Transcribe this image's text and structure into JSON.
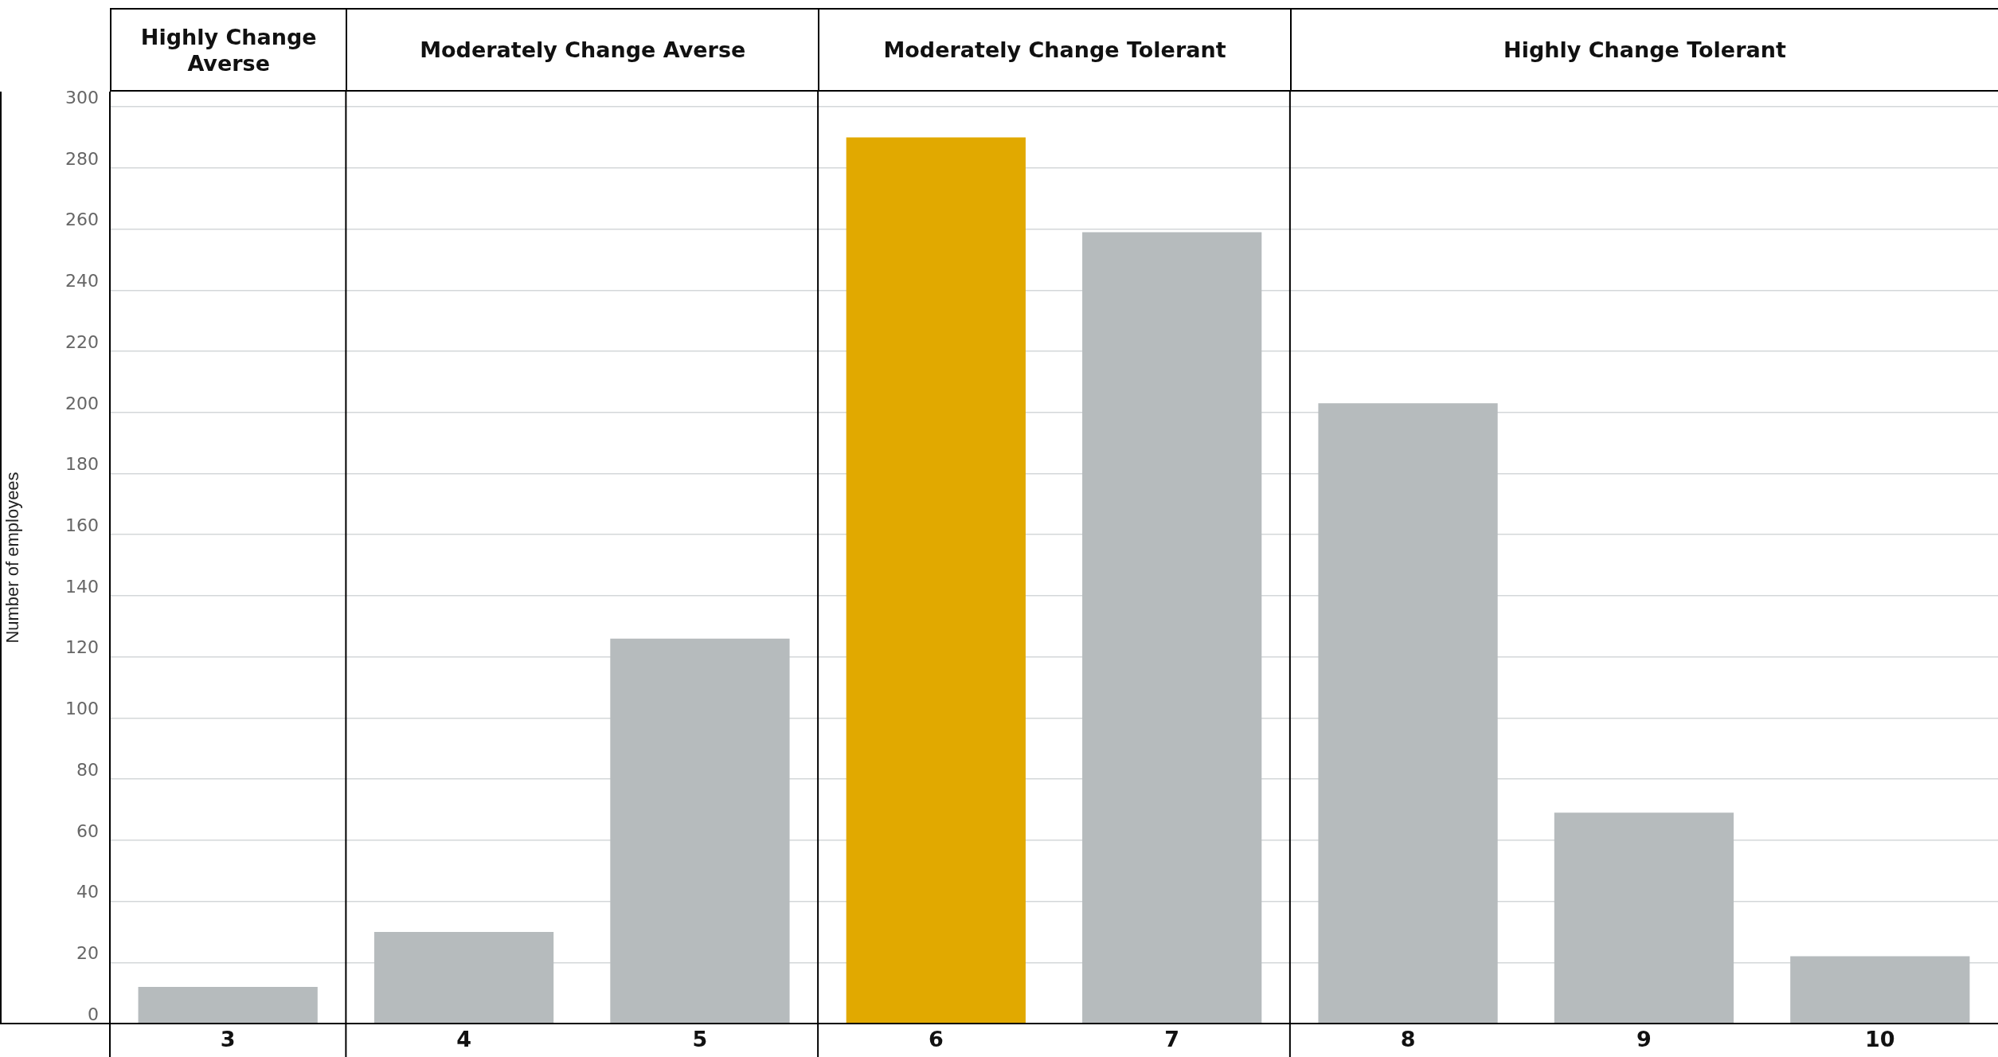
{
  "chart_data": {
    "type": "bar",
    "ylabel": "Number of employees",
    "categories": [
      "3",
      "4",
      "5",
      "6",
      "7",
      "8",
      "9",
      "10"
    ],
    "values": [
      12,
      30,
      126,
      290,
      259,
      203,
      69,
      22
    ],
    "colors": [
      "#b6bbbd",
      "#b6bbbd",
      "#b6bbbd",
      "#e1a900",
      "#b6bbbd",
      "#b6bbbd",
      "#b6bbbd",
      "#b6bbbd"
    ],
    "ylim": [
      0,
      305
    ],
    "yticks": [
      0,
      20,
      40,
      60,
      80,
      100,
      120,
      140,
      160,
      180,
      200,
      220,
      240,
      260,
      280,
      300
    ],
    "grid": "y",
    "legend": false,
    "annotations": [
      "Highly Change Averse",
      "Moderately Change Averse",
      "Moderately Change Tolerant",
      "Highly Change Tolerant"
    ]
  }
}
